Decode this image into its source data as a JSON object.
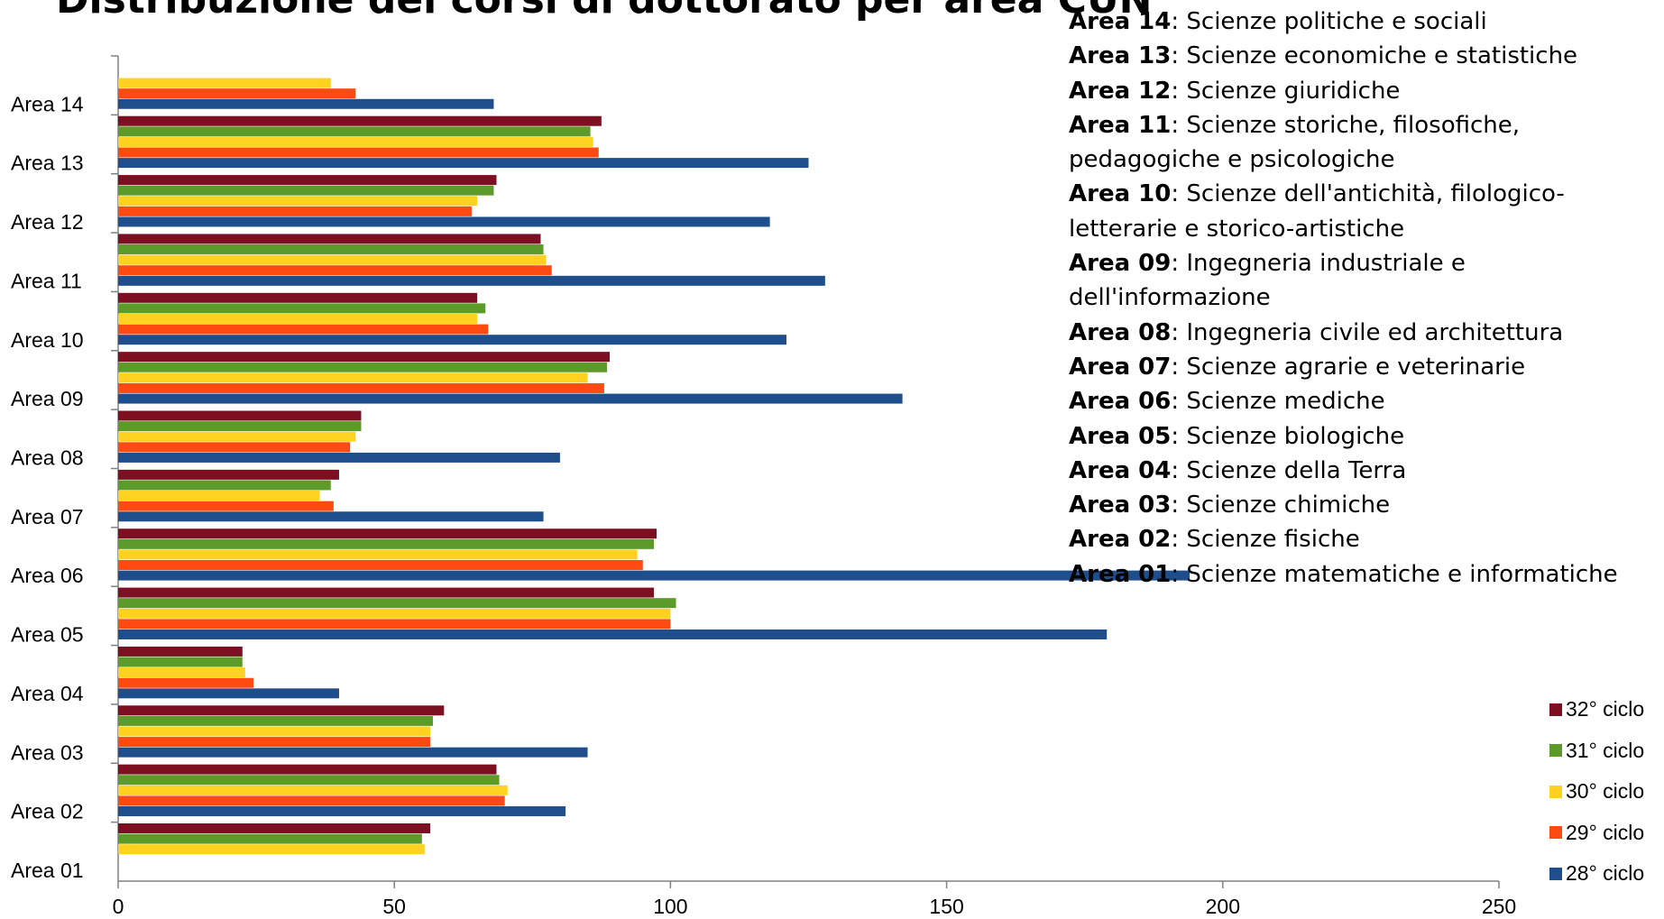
{
  "title": "Distribuzione dei corsi di dottorato per area CUN",
  "area_list": [
    {
      "code": "Area 14",
      "desc": "Scienze politiche e sociali"
    },
    {
      "code": "Area 13",
      "desc": "Scienze economiche e statistiche"
    },
    {
      "code": "Area 12",
      "desc": "Scienze giuridiche"
    },
    {
      "code": "Area 11",
      "desc": "Scienze storiche, filosofiche, pedagogiche e psicologiche"
    },
    {
      "code": "Area 10",
      "desc": "Scienze dell'antichità, filologico-letterarie e storico-artistiche"
    },
    {
      "code": "Area 09",
      "desc": "Ingegneria industriale e dell'informazione"
    },
    {
      "code": "Area 08",
      "desc": "Ingegneria civile ed architettura"
    },
    {
      "code": "Area 07",
      "desc": "Scienze agrarie e veterinarie"
    },
    {
      "code": "Area 06",
      "desc": "Scienze mediche"
    },
    {
      "code": "Area 05",
      "desc": "Scienze biologiche"
    },
    {
      "code": "Area 04",
      "desc": "Scienze della Terra"
    },
    {
      "code": "Area 03",
      "desc": "Scienze chimiche"
    },
    {
      "code": "Area 02",
      "desc": "Scienze fisiche"
    },
    {
      "code": "Area 01",
      "desc": "Scienze matematiche e informatiche"
    }
  ],
  "chart_data": {
    "type": "bar",
    "orientation": "horizontal",
    "categories": [
      "Area 01",
      "Area 02",
      "Area 03",
      "Area 04",
      "Area 05",
      "Area 06",
      "Area 07",
      "Area 08",
      "Area 09",
      "Area 10",
      "Area 11",
      "Area 12",
      "Area 13",
      "Area 14"
    ],
    "xlim": [
      0,
      250
    ],
    "xticks": [
      0,
      50,
      100,
      150,
      200,
      250
    ],
    "grid": false,
    "legend_position": "bottom-right",
    "series": [
      {
        "name": "28° ciclo",
        "color": "#1F4E8C",
        "values": [
          null,
          81,
          85,
          40,
          179,
          194,
          77,
          80,
          142,
          121,
          128,
          118,
          125,
          68
        ]
      },
      {
        "name": "29° ciclo",
        "color": "#FF4A12",
        "values": [
          null,
          70,
          56.5,
          24.5,
          100,
          95,
          39,
          42,
          88,
          67,
          78.5,
          64,
          87,
          43
        ]
      },
      {
        "name": "30° ciclo",
        "color": "#FFD21F",
        "values": [
          55.5,
          70.5,
          56.5,
          23,
          100,
          94,
          36.5,
          43,
          85,
          65,
          77.5,
          65,
          86,
          38.5
        ]
      },
      {
        "name": "31° ciclo",
        "color": "#5C9A2A",
        "values": [
          55,
          69,
          57,
          22.5,
          101,
          97,
          38.5,
          44,
          88.5,
          66.5,
          77,
          68,
          85.5,
          null
        ]
      },
      {
        "name": "32° ciclo",
        "color": "#7D0F22",
        "values": [
          56.5,
          68.5,
          59,
          22.5,
          97,
          97.5,
          40,
          44,
          89,
          65,
          76.5,
          68.5,
          87.5,
          null
        ]
      }
    ]
  }
}
